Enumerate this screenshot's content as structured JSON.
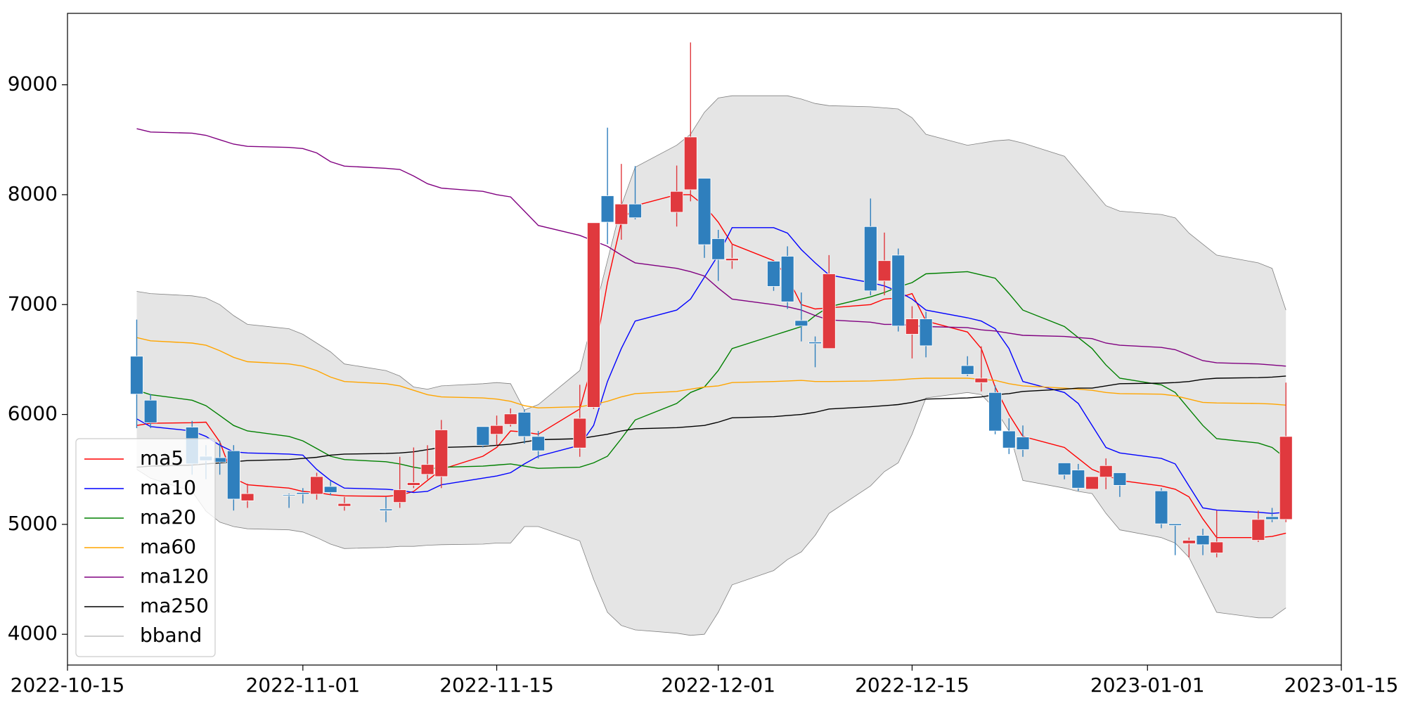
{
  "chart_data": {
    "type": "candlestick",
    "x": [
      "2022-10-20",
      "2022-10-21",
      "2022-10-24",
      "2022-10-25",
      "2022-10-26",
      "2022-10-27",
      "2022-10-28",
      "2022-10-31",
      "2022-11-01",
      "2022-11-02",
      "2022-11-03",
      "2022-11-04",
      "2022-11-07",
      "2022-11-08",
      "2022-11-09",
      "2022-11-10",
      "2022-11-11",
      "2022-11-14",
      "2022-11-15",
      "2022-11-16",
      "2022-11-17",
      "2022-11-18",
      "2022-11-21",
      "2022-11-22",
      "2022-11-23",
      "2022-11-24",
      "2022-11-25",
      "2022-11-28",
      "2022-11-29",
      "2022-11-30",
      "2022-12-01",
      "2022-12-02",
      "2022-12-05",
      "2022-12-06",
      "2022-12-07",
      "2022-12-08",
      "2022-12-09",
      "2022-12-12",
      "2022-12-13",
      "2022-12-14",
      "2022-12-15",
      "2022-12-16",
      "2022-12-19",
      "2022-12-20",
      "2022-12-21",
      "2022-12-22",
      "2022-12-23",
      "2022-12-26",
      "2022-12-27",
      "2022-12-28",
      "2022-12-29",
      "2022-12-30",
      "2023-01-02",
      "2023-01-03",
      "2023-01-04",
      "2023-01-05",
      "2023-01-06",
      "2023-01-09",
      "2023-01-10",
      "2023-01-11"
    ],
    "candles": {
      "up_color": "#e0393e",
      "down_color": "#2f7fbd",
      "open": [
        6530,
        6130,
        5885,
        5620,
        5607,
        5670,
        5215,
        5270,
        5290,
        5275,
        5345,
        5165,
        5140,
        5200,
        5355,
        5455,
        5435,
        5890,
        5820,
        5910,
        6020,
        5800,
        5695,
        6065,
        7990,
        7730,
        7915,
        7840,
        8045,
        8150,
        7600,
        7400,
        7395,
        7440,
        6855,
        6660,
        6600,
        7710,
        7215,
        7450,
        6730,
        6870,
        6445,
        6290,
        6200,
        5850,
        5795,
        5560,
        5495,
        5320,
        5430,
        5470,
        5305,
        5005,
        4825,
        4900,
        4740,
        4855,
        5070,
        5045
      ],
      "high": [
        6863,
        6185,
        5941,
        5721,
        5762,
        5721,
        5370,
        5280,
        5330,
        5470,
        5395,
        5250,
        5250,
        5615,
        5700,
        5720,
        5950,
        5890,
        5990,
        6055,
        6045,
        5850,
        6270,
        7745,
        8610,
        8280,
        8260,
        8265,
        9385,
        8150,
        7680,
        7555,
        7395,
        7530,
        7110,
        6710,
        7450,
        7965,
        7655,
        7510,
        6985,
        6935,
        6530,
        6620,
        6265,
        5965,
        5900,
        5560,
        5550,
        5435,
        5600,
        5470,
        5330,
        5005,
        4880,
        4960,
        5125,
        5125,
        5150,
        6290
      ],
      "low": [
        5876,
        5876,
        5452,
        5411,
        5452,
        5126,
        5150,
        5150,
        5190,
        5225,
        5265,
        5125,
        5020,
        5150,
        5330,
        5410,
        5330,
        5700,
        5720,
        5890,
        5735,
        5600,
        5615,
        6050,
        7550,
        7590,
        7775,
        7710,
        7940,
        7425,
        7215,
        7325,
        7125,
        6960,
        6665,
        6430,
        6600,
        7085,
        7085,
        6755,
        6510,
        6520,
        6350,
        6210,
        5820,
        5640,
        5615,
        5410,
        5305,
        5320,
        5320,
        5250,
        4965,
        4720,
        4700,
        4720,
        4700,
        4840,
        5020,
        5020
      ],
      "close": [
        6185,
        5925,
        5550,
        5580,
        5566,
        5230,
        5280,
        5265,
        5275,
        5435,
        5290,
        5190,
        5125,
        5315,
        5380,
        5545,
        5860,
        5720,
        5900,
        6005,
        5800,
        5670,
        5965,
        7745,
        7750,
        7915,
        7790,
        8030,
        8525,
        7545,
        7410,
        7420,
        7165,
        7025,
        6805,
        6645,
        7280,
        7125,
        7400,
        6805,
        6870,
        6625,
        6365,
        6330,
        5850,
        5695,
        5680,
        5450,
        5330,
        5435,
        5535,
        5355,
        5005,
        4990,
        4855,
        4815,
        4840,
        5045,
        5045,
        5800
      ]
    },
    "series": [
      {
        "name": "ma5",
        "color": "red",
        "values": [
          5900,
          5920,
          5925,
          5930,
          5750,
          5420,
          5360,
          5330,
          5300,
          5290,
          5270,
          5260,
          5255,
          5265,
          5300,
          5400,
          5500,
          5620,
          5700,
          5850,
          5840,
          5820,
          6050,
          6500,
          7200,
          7750,
          7900,
          8000,
          8000,
          7900,
          7750,
          7550,
          7400,
          7250,
          7000,
          6960,
          6970,
          7000,
          7050,
          7060,
          7100,
          6850,
          6750,
          6600,
          6250,
          6000,
          5800,
          5700,
          5600,
          5500,
          5450,
          5400,
          5350,
          5320,
          5250,
          5050,
          4880,
          4880,
          4890,
          4920
        ]
      },
      {
        "name": "ma10",
        "color": "blue",
        "values": [
          5960,
          5890,
          5850,
          5800,
          5720,
          5660,
          5650,
          5640,
          5630,
          5500,
          5400,
          5330,
          5320,
          5310,
          5290,
          5300,
          5360,
          5420,
          5440,
          5470,
          5550,
          5620,
          5720,
          5900,
          6300,
          6600,
          6850,
          6950,
          7050,
          7250,
          7450,
          7700,
          7700,
          7650,
          7500,
          7380,
          7270,
          7200,
          7170,
          7120,
          7050,
          6950,
          6880,
          6850,
          6780,
          6600,
          6300,
          6200,
          6100,
          5900,
          5700,
          5650,
          5600,
          5550,
          5350,
          5150,
          5130,
          5110,
          5100,
          5110
        ]
      },
      {
        "name": "ma20",
        "color": "green",
        "values": [
          6220,
          6180,
          6130,
          6080,
          5990,
          5900,
          5850,
          5800,
          5760,
          5690,
          5620,
          5590,
          5570,
          5550,
          5520,
          5500,
          5520,
          5530,
          5540,
          5550,
          5530,
          5510,
          5520,
          5560,
          5620,
          5780,
          5950,
          6100,
          6200,
          6250,
          6400,
          6600,
          6720,
          6760,
          6800,
          6900,
          6980,
          7070,
          7110,
          7160,
          7200,
          7280,
          7300,
          7270,
          7240,
          7100,
          6950,
          6800,
          6700,
          6600,
          6450,
          6330,
          6270,
          6200,
          6050,
          5900,
          5780,
          5740,
          5700,
          5600
        ]
      },
      {
        "name": "ma60",
        "color": "orange",
        "values": [
          6700,
          6670,
          6650,
          6630,
          6580,
          6520,
          6480,
          6460,
          6440,
          6400,
          6340,
          6300,
          6280,
          6260,
          6220,
          6180,
          6160,
          6150,
          6140,
          6120,
          6080,
          6060,
          6070,
          6090,
          6120,
          6160,
          6190,
          6210,
          6230,
          6250,
          6260,
          6290,
          6300,
          6305,
          6310,
          6300,
          6300,
          6305,
          6310,
          6315,
          6325,
          6330,
          6330,
          6320,
          6310,
          6280,
          6260,
          6240,
          6230,
          6220,
          6200,
          6190,
          6185,
          6170,
          6140,
          6110,
          6105,
          6100,
          6095,
          6085
        ]
      },
      {
        "name": "ma120",
        "color": "purple",
        "values": [
          8600,
          8570,
          8560,
          8540,
          8500,
          8460,
          8440,
          8430,
          8420,
          8380,
          8300,
          8260,
          8240,
          8230,
          8170,
          8100,
          8060,
          8030,
          8000,
          7980,
          7850,
          7720,
          7630,
          7580,
          7530,
          7450,
          7380,
          7330,
          7300,
          7260,
          7150,
          7050,
          7000,
          6980,
          6950,
          6900,
          6860,
          6840,
          6820,
          6820,
          6810,
          6800,
          6790,
          6770,
          6760,
          6740,
          6720,
          6710,
          6700,
          6690,
          6650,
          6630,
          6610,
          6590,
          6540,
          6490,
          6470,
          6460,
          6450,
          6440
        ]
      },
      {
        "name": "ma250",
        "color": "black",
        "values": [
          5520,
          5530,
          5540,
          5550,
          5560,
          5570,
          5580,
          5590,
          5600,
          5610,
          5630,
          5640,
          5645,
          5650,
          5660,
          5680,
          5700,
          5710,
          5720,
          5730,
          5750,
          5770,
          5780,
          5800,
          5820,
          5850,
          5870,
          5880,
          5890,
          5900,
          5930,
          5970,
          5980,
          5990,
          6000,
          6020,
          6050,
          6070,
          6080,
          6090,
          6110,
          6140,
          6150,
          6160,
          6180,
          6190,
          6210,
          6230,
          6240,
          6240,
          6260,
          6280,
          6285,
          6290,
          6300,
          6320,
          6330,
          6335,
          6340,
          6350
        ]
      }
    ],
    "bband": {
      "name": "bband",
      "color": "gray",
      "fill": "#e5e5e5",
      "upper": [
        7120,
        7100,
        7080,
        7060,
        7000,
        6900,
        6820,
        6780,
        6730,
        6650,
        6570,
        6460,
        6400,
        6350,
        6250,
        6230,
        6260,
        6280,
        6290,
        6280,
        6040,
        6090,
        6400,
        6900,
        7400,
        7900,
        8250,
        8450,
        8550,
        8750,
        8880,
        8900,
        8900,
        8900,
        8870,
        8830,
        8810,
        8800,
        8790,
        8780,
        8700,
        8550,
        8450,
        8470,
        8490,
        8500,
        8470,
        8350,
        8200,
        8050,
        7900,
        7850,
        7820,
        7790,
        7650,
        7550,
        7450,
        7380,
        7330,
        6950
      ],
      "lower": [
        5500,
        5420,
        5300,
        5120,
        5020,
        4980,
        4960,
        4950,
        4930,
        4880,
        4820,
        4780,
        4790,
        4800,
        4800,
        4810,
        4815,
        4820,
        4830,
        4830,
        4980,
        4980,
        4850,
        4500,
        4200,
        4080,
        4040,
        4010,
        3990,
        4000,
        4200,
        4450,
        4580,
        4680,
        4750,
        4900,
        5100,
        5350,
        5480,
        5560,
        5820,
        6150,
        6200,
        6180,
        6050,
        5850,
        5400,
        5330,
        5300,
        5280,
        5100,
        4950,
        4880,
        4830,
        4700,
        4450,
        4200,
        4150,
        4150,
        4240
      ]
    },
    "xlim": [
      "2022-10-15",
      "2023-01-15"
    ],
    "xticks": [
      "2022-10-15",
      "2022-11-01",
      "2022-11-15",
      "2022-12-01",
      "2022-12-15",
      "2023-01-01",
      "2023-01-15"
    ],
    "ylim": [
      3720,
      9650
    ],
    "yticks": [
      4000,
      5000,
      6000,
      7000,
      8000,
      9000
    ],
    "legend": "lower left"
  }
}
